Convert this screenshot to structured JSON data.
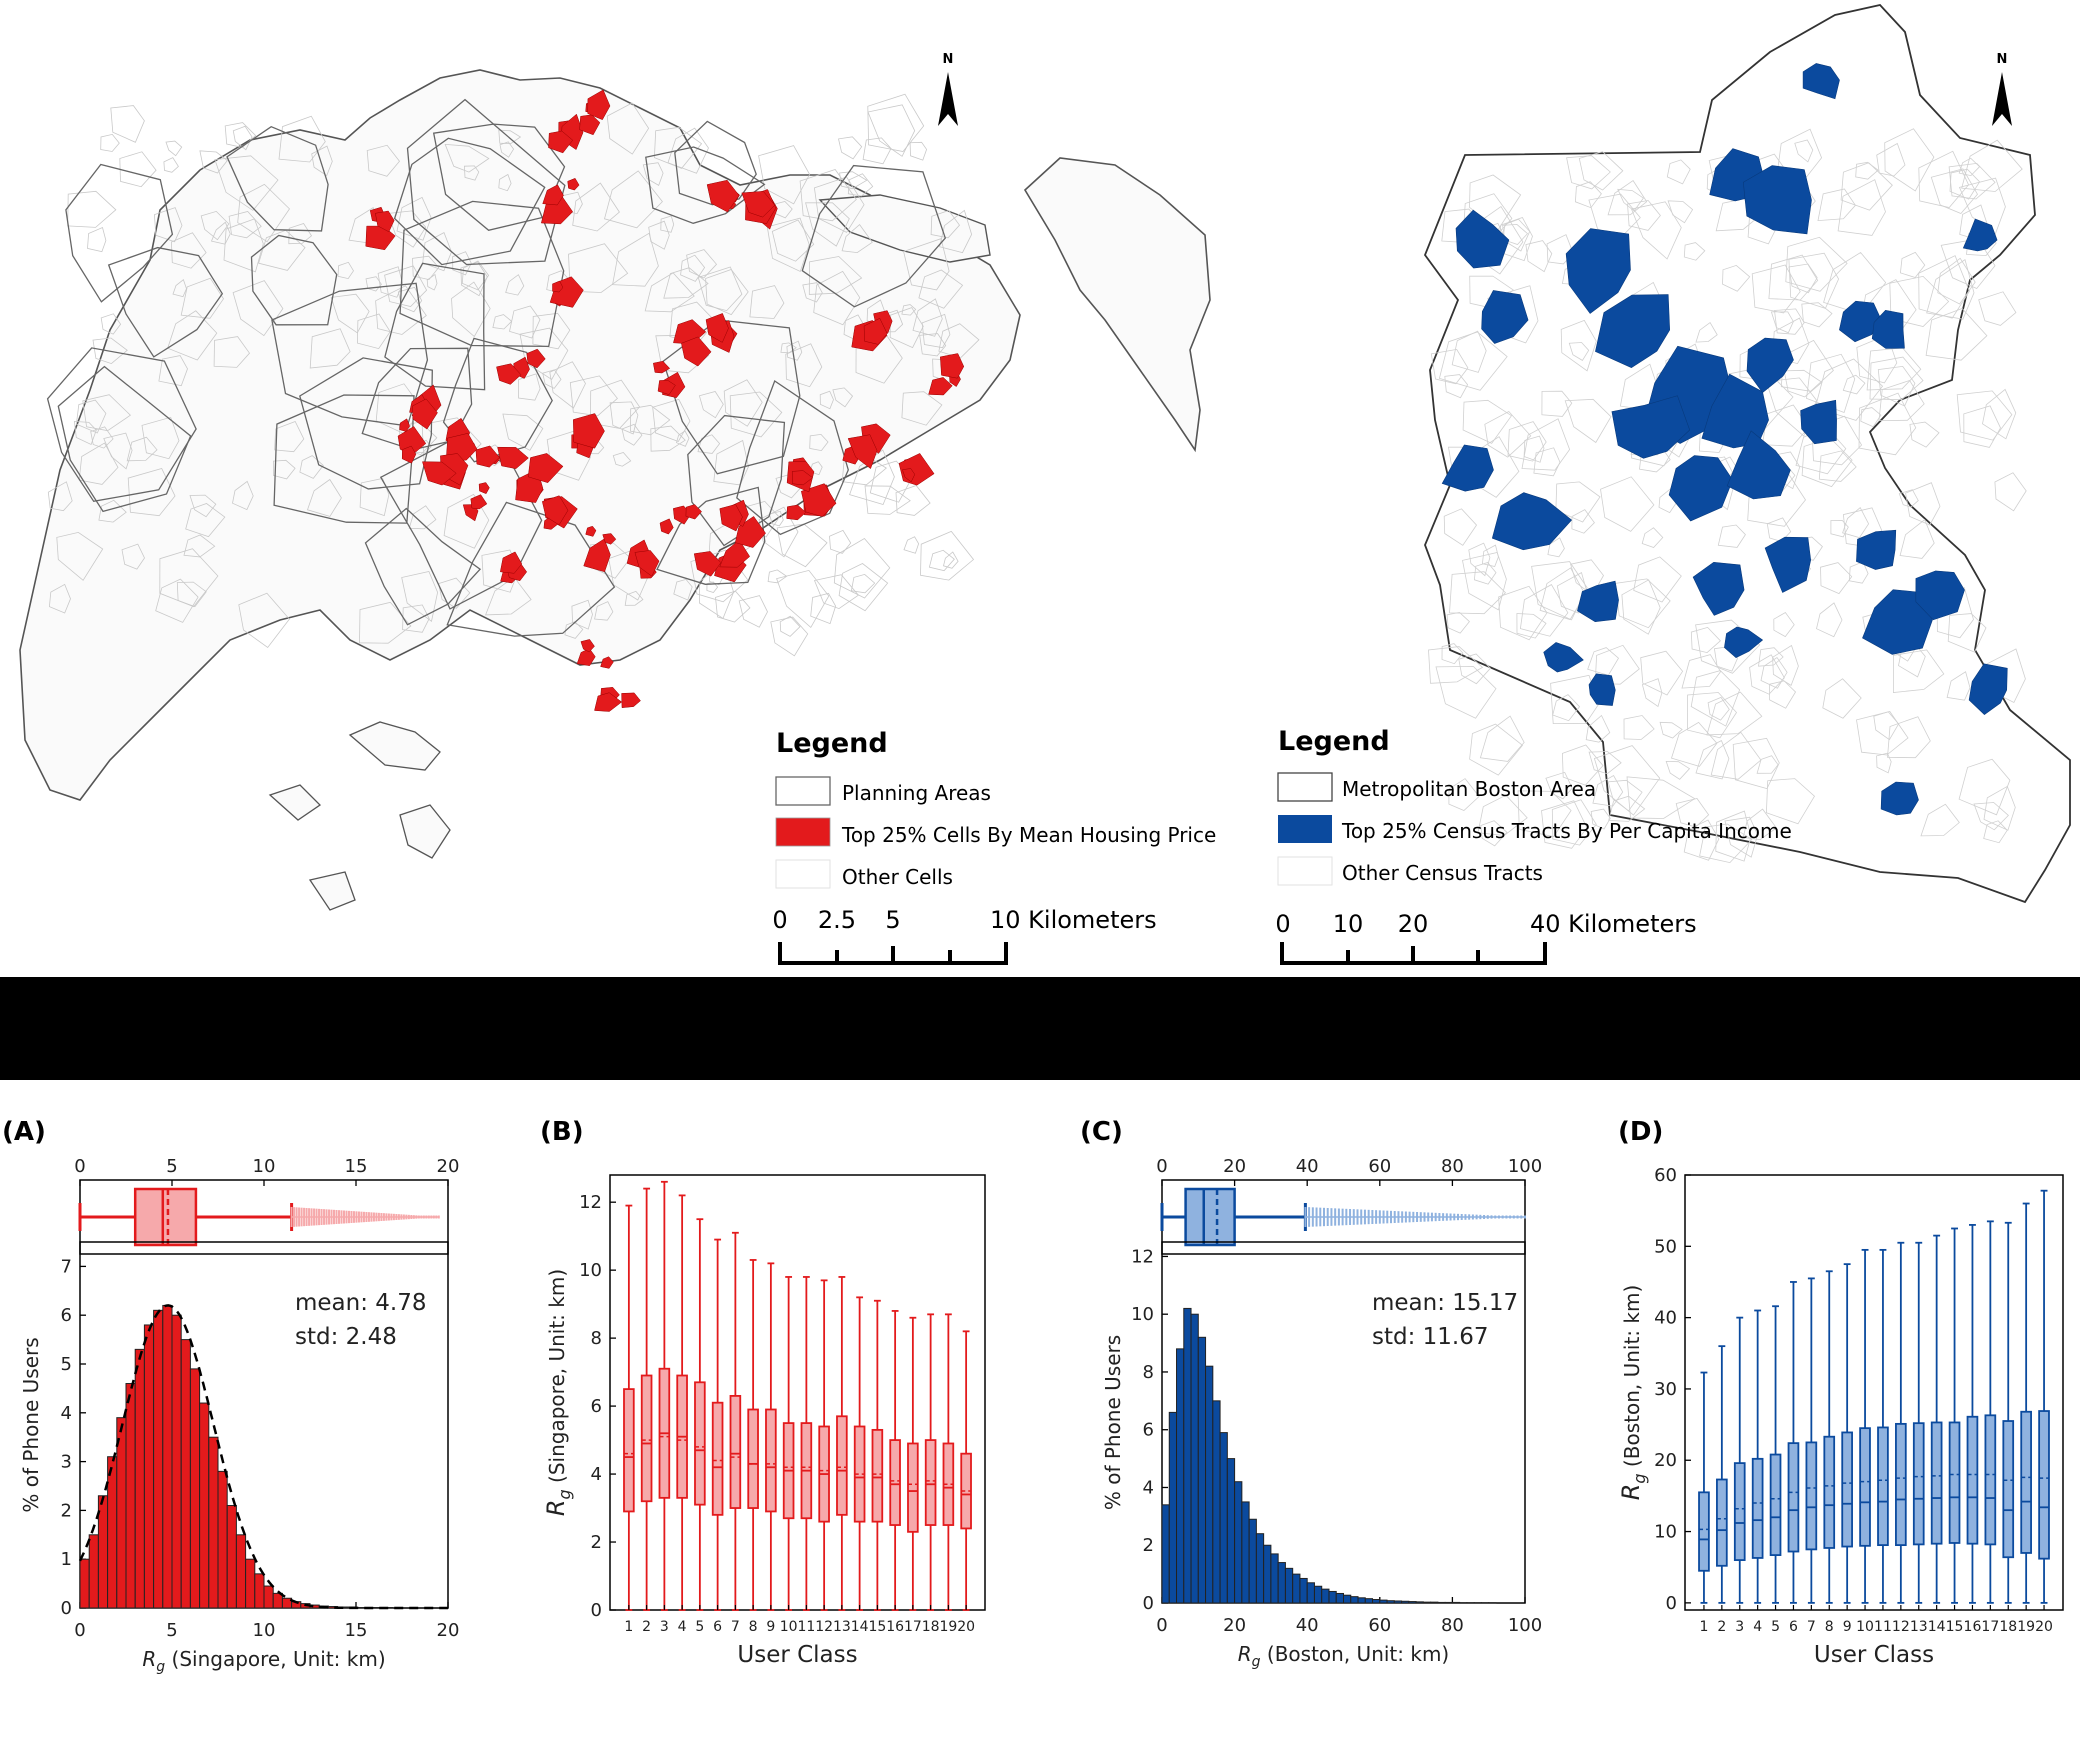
{
  "colors": {
    "singapore": "#e31a1c",
    "singapore_light": "#f6a9ab",
    "boston": "#0b4a9e",
    "boston_light": "#8fb2df",
    "band": "#000000"
  },
  "maps": [
    {
      "id": "singapore",
      "north": "N",
      "legend": {
        "title": "Legend",
        "items": [
          "Planning Areas",
          "Top 25% Cells By Mean Housing Price",
          "Other Cells"
        ]
      },
      "scale": {
        "ticks": [
          "0",
          "2.5",
          "5",
          "10 Kilometers"
        ]
      }
    },
    {
      "id": "boston",
      "north": "N",
      "legend": {
        "title": "Legend",
        "items": [
          "Metropolitan Boston Area",
          "Top 25% Census Tracts By Per Capita Income",
          "Other Census Tracts"
        ]
      },
      "scale": {
        "ticks": [
          "0",
          "10",
          "20",
          "40 Kilometers"
        ]
      }
    }
  ],
  "chart_data": [
    {
      "panel": "(A)",
      "type": "bar",
      "xlabel": "R_g (Singapore, Unit: km)",
      "xlabel_base": "R",
      "xlabel_sub": "g",
      "xlabel_rest": " (Singapore, Unit: km)",
      "ylabel": "% of Phone Users",
      "xlim": [
        0,
        20
      ],
      "ylim": [
        0,
        7.5
      ],
      "xticks": [
        0,
        5,
        10,
        15,
        20
      ],
      "yticks": [
        0,
        1,
        2,
        3,
        4,
        5,
        6,
        7
      ],
      "top_xticks": [
        0,
        5,
        10,
        15,
        20
      ],
      "bin_width": 0.5,
      "bin_starts": [
        0,
        0.5,
        1,
        1.5,
        2,
        2.5,
        3,
        3.5,
        4,
        4.5,
        5,
        5.5,
        6,
        6.5,
        7,
        7.5,
        8,
        8.5,
        9,
        9.5,
        10,
        10.5,
        11,
        11.5,
        12,
        12.5,
        13,
        13.5,
        14,
        14.5,
        15,
        15.5,
        16,
        16.5,
        17,
        17.5,
        18,
        18.5,
        19,
        19.5
      ],
      "values": [
        1.0,
        1.5,
        2.3,
        3.1,
        3.9,
        4.6,
        5.3,
        5.8,
        6.1,
        6.2,
        6.0,
        5.5,
        4.9,
        4.2,
        3.5,
        2.8,
        2.1,
        1.5,
        1.0,
        0.7,
        0.45,
        0.3,
        0.2,
        0.13,
        0.09,
        0.06,
        0.04,
        0.03,
        0.02,
        0.02,
        0.01,
        0.01,
        0.01,
        0.01,
        0.0,
        0.0,
        0.0,
        0.0,
        0.0,
        0.0
      ],
      "fit_curve": {
        "type": "gaussian",
        "mean": 4.78,
        "std": 2.48
      },
      "box": {
        "whisker_low": 0,
        "q1": 3.0,
        "median": 4.5,
        "mean": 4.78,
        "q3": 6.3,
        "whisker_high": 11.5,
        "outlier_max": 19.5
      },
      "annotation": {
        "mean": "mean: 4.78",
        "std": "std: 2.48"
      }
    },
    {
      "panel": "(B)",
      "type": "box",
      "xlabel": "User Class",
      "ylabel": "R_g (Singapore, Unit: km)",
      "ylabel_base": "R",
      "ylabel_sub": "g",
      "ylabel_rest": " (Singapore, Unit: km)",
      "ylim": [
        0,
        12.8
      ],
      "yticks": [
        0,
        2,
        4,
        6,
        8,
        10,
        12
      ],
      "categories": [
        "1",
        "2",
        "3",
        "4",
        "5",
        "6",
        "7",
        "8",
        "9",
        "10",
        "11",
        "12",
        "13",
        "14",
        "15",
        "16",
        "17",
        "18",
        "19",
        "20"
      ],
      "whisker_low": [
        0,
        0,
        0,
        0,
        0,
        0,
        0,
        0,
        0,
        0,
        0,
        0,
        0,
        0,
        0,
        0,
        0,
        0,
        0,
        0
      ],
      "q1": [
        2.9,
        3.2,
        3.3,
        3.3,
        3.1,
        2.8,
        3.0,
        3.0,
        2.9,
        2.7,
        2.7,
        2.6,
        2.8,
        2.6,
        2.6,
        2.5,
        2.3,
        2.5,
        2.5,
        2.4
      ],
      "median": [
        4.5,
        4.9,
        5.2,
        5.1,
        4.7,
        4.2,
        4.6,
        4.3,
        4.2,
        4.1,
        4.1,
        4.0,
        4.1,
        3.9,
        3.9,
        3.7,
        3.5,
        3.7,
        3.6,
        3.4
      ],
      "mean": [
        4.6,
        5.0,
        5.1,
        5.0,
        4.8,
        4.4,
        4.5,
        4.3,
        4.3,
        4.2,
        4.2,
        4.1,
        4.2,
        4.0,
        4.0,
        3.8,
        3.7,
        3.8,
        3.7,
        3.5
      ],
      "q3": [
        6.5,
        6.9,
        7.1,
        6.9,
        6.7,
        6.1,
        6.3,
        5.9,
        5.9,
        5.5,
        5.5,
        5.4,
        5.7,
        5.4,
        5.3,
        5.0,
        4.9,
        5.0,
        4.9,
        4.6
      ],
      "whisker_high": [
        11.9,
        12.4,
        12.6,
        12.2,
        11.5,
        10.9,
        11.1,
        10.3,
        10.2,
        9.8,
        9.8,
        9.7,
        9.8,
        9.2,
        9.1,
        8.8,
        8.6,
        8.7,
        8.7,
        8.2
      ]
    },
    {
      "panel": "(C)",
      "type": "bar",
      "xlabel": "R_g (Boston, Unit: km)",
      "xlabel_base": "R",
      "xlabel_sub": "g",
      "xlabel_rest": " (Boston, Unit: km)",
      "ylabel": "% of Phone Users",
      "xlim": [
        0,
        100
      ],
      "ylim": [
        0,
        12.5
      ],
      "xticks": [
        0,
        20,
        40,
        60,
        80,
        100
      ],
      "yticks": [
        0,
        2,
        4,
        6,
        8,
        10,
        12
      ],
      "top_xticks": [
        0,
        20,
        40,
        60,
        80,
        100
      ],
      "bin_width": 2,
      "bin_starts": [
        0,
        2,
        4,
        6,
        8,
        10,
        12,
        14,
        16,
        18,
        20,
        22,
        24,
        26,
        28,
        30,
        32,
        34,
        36,
        38,
        40,
        42,
        44,
        46,
        48,
        50,
        52,
        54,
        56,
        58,
        60,
        62,
        64,
        66,
        68,
        70,
        72,
        74,
        76,
        78,
        80,
        82,
        84,
        86,
        88,
        90,
        92,
        94,
        96,
        98
      ],
      "values": [
        3.4,
        6.6,
        8.8,
        10.2,
        10.0,
        9.2,
        8.2,
        7.0,
        5.9,
        5.0,
        4.2,
        3.5,
        2.9,
        2.4,
        2.0,
        1.7,
        1.4,
        1.2,
        1.0,
        0.85,
        0.7,
        0.58,
        0.48,
        0.4,
        0.33,
        0.27,
        0.22,
        0.18,
        0.15,
        0.12,
        0.1,
        0.08,
        0.07,
        0.06,
        0.05,
        0.04,
        0.03,
        0.03,
        0.02,
        0.02,
        0.02,
        0.01,
        0.01,
        0.01,
        0.01,
        0.01,
        0.0,
        0.0,
        0.0,
        0.0
      ],
      "box": {
        "whisker_low": 0,
        "q1": 6.5,
        "median": 11.5,
        "mean": 15.17,
        "q3": 20.0,
        "whisker_high": 39.5,
        "outlier_max": 100
      },
      "annotation": {
        "mean": "mean: 15.17",
        "std": "std: 11.67"
      }
    },
    {
      "panel": "(D)",
      "type": "box",
      "xlabel": "User Class",
      "ylabel": "R_g (Boston, Unit: km)",
      "ylabel_base": "R",
      "ylabel_sub": "g",
      "ylabel_rest": " (Boston, Unit: km)",
      "ylim": [
        -1,
        60
      ],
      "yticks": [
        0,
        10,
        20,
        30,
        40,
        50,
        60
      ],
      "categories": [
        "1",
        "2",
        "3",
        "4",
        "5",
        "6",
        "7",
        "8",
        "9",
        "10",
        "11",
        "12",
        "13",
        "14",
        "15",
        "16",
        "17",
        "18",
        "19",
        "20"
      ],
      "whisker_low": [
        0,
        0,
        0,
        0,
        0,
        0,
        0,
        0,
        0,
        0,
        0,
        0,
        0,
        0,
        0,
        0,
        0,
        0,
        0,
        0
      ],
      "q1": [
        4.5,
        5.2,
        6.0,
        6.3,
        6.7,
        7.2,
        7.5,
        7.7,
        7.9,
        8.0,
        8.1,
        8.1,
        8.2,
        8.3,
        8.4,
        8.3,
        8.2,
        6.4,
        7.0,
        6.2
      ],
      "median": [
        8.9,
        10.2,
        11.2,
        11.6,
        12.0,
        13.0,
        13.4,
        13.7,
        13.9,
        14.1,
        14.2,
        14.5,
        14.6,
        14.7,
        14.8,
        14.8,
        14.7,
        13.0,
        14.2,
        13.4
      ],
      "mean": [
        10.3,
        11.8,
        13.2,
        14.0,
        14.6,
        15.5,
        16.1,
        16.4,
        16.8,
        17.0,
        17.2,
        17.5,
        17.7,
        17.8,
        18.0,
        18.0,
        18.0,
        17.2,
        17.6,
        17.5
      ],
      "q3": [
        15.5,
        17.3,
        19.6,
        20.2,
        20.8,
        22.4,
        22.5,
        23.3,
        23.9,
        24.5,
        24.6,
        25.1,
        25.2,
        25.3,
        25.3,
        26.1,
        26.3,
        25.5,
        26.8,
        26.9
      ],
      "whisker_high": [
        32.3,
        36.0,
        40.0,
        41.0,
        41.6,
        45.0,
        45.5,
        46.5,
        47.5,
        49.5,
        49.5,
        50.5,
        50.5,
        51.5,
        52.5,
        53.0,
        53.5,
        53.3,
        56.0,
        57.8
      ]
    }
  ]
}
